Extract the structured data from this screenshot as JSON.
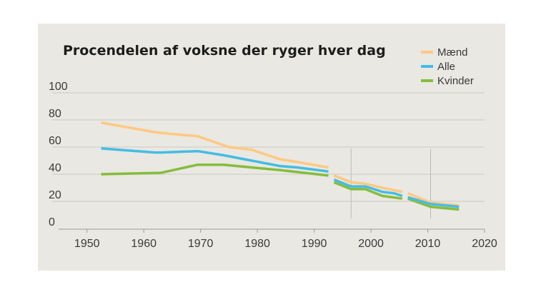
{
  "chart_data": {
    "type": "line",
    "title": "Procendelen af voksne der ryger hver dag",
    "xlabel": "",
    "ylabel": "",
    "xlim": [
      1945,
      2020
    ],
    "ylim": [
      0,
      100
    ],
    "x_ticks": [
      "1950",
      "1960",
      "1970",
      "1980",
      "1990",
      "2000",
      "2010",
      "2020"
    ],
    "y_ticks": [
      "0",
      "20",
      "40",
      "60",
      "80",
      "100"
    ],
    "grid": true,
    "legend": "top-right",
    "series": [
      {
        "name": "Mænd",
        "color": "#fdc981",
        "segments": [
          [
            [
              1952.5,
              78
            ],
            [
              1962,
              71
            ],
            [
              1964,
              70
            ],
            [
              1969.5,
              68
            ],
            [
              1975,
              60
            ],
            [
              1979,
              58
            ],
            [
              1984,
              51
            ],
            [
              1987,
              49
            ],
            [
              1992.5,
              45
            ]
          ],
          [
            [
              1993.5,
              39
            ],
            [
              1996.5,
              34
            ],
            [
              1999,
              33
            ],
            [
              2002,
              30
            ],
            [
              2005.5,
              27
            ]
          ],
          [
            [
              2006.5,
              26
            ],
            [
              2010.5,
              19
            ],
            [
              2015.5,
              17
            ]
          ]
        ]
      },
      {
        "name": "Alle",
        "color": "#43bde3",
        "segments": [
          [
            [
              1952.5,
              59
            ],
            [
              1962,
              56
            ],
            [
              1963,
              56
            ],
            [
              1969.5,
              57
            ],
            [
              1974,
              54
            ],
            [
              1979,
              50
            ],
            [
              1984,
              46
            ],
            [
              1987,
              45
            ],
            [
              1992.5,
              42
            ]
          ],
          [
            [
              1993.5,
              36
            ],
            [
              1996.5,
              31
            ],
            [
              1999,
              31
            ],
            [
              2002,
              27
            ],
            [
              2004,
              26
            ],
            [
              2005.5,
              24
            ]
          ],
          [
            [
              2006.5,
              23
            ],
            [
              2010.5,
              18
            ],
            [
              2015.5,
              16
            ]
          ]
        ]
      },
      {
        "name": "Kvinder",
        "color": "#85bd3b",
        "segments": [
          [
            [
              1952.5,
              40
            ],
            [
              1963,
              41
            ],
            [
              1969.5,
              47
            ],
            [
              1974,
              47
            ],
            [
              1979,
              45
            ],
            [
              1984,
              43
            ],
            [
              1992.5,
              39
            ]
          ],
          [
            [
              1993.5,
              34
            ],
            [
              1996.5,
              29
            ],
            [
              1999,
              29
            ],
            [
              2002,
              24
            ],
            [
              2005.5,
              22
            ]
          ],
          [
            [
              2006.5,
              22
            ],
            [
              2010.5,
              16
            ],
            [
              2015.5,
              14
            ]
          ]
        ]
      }
    ],
    "vertical_markers": [
      1996.5,
      2010.5
    ]
  }
}
